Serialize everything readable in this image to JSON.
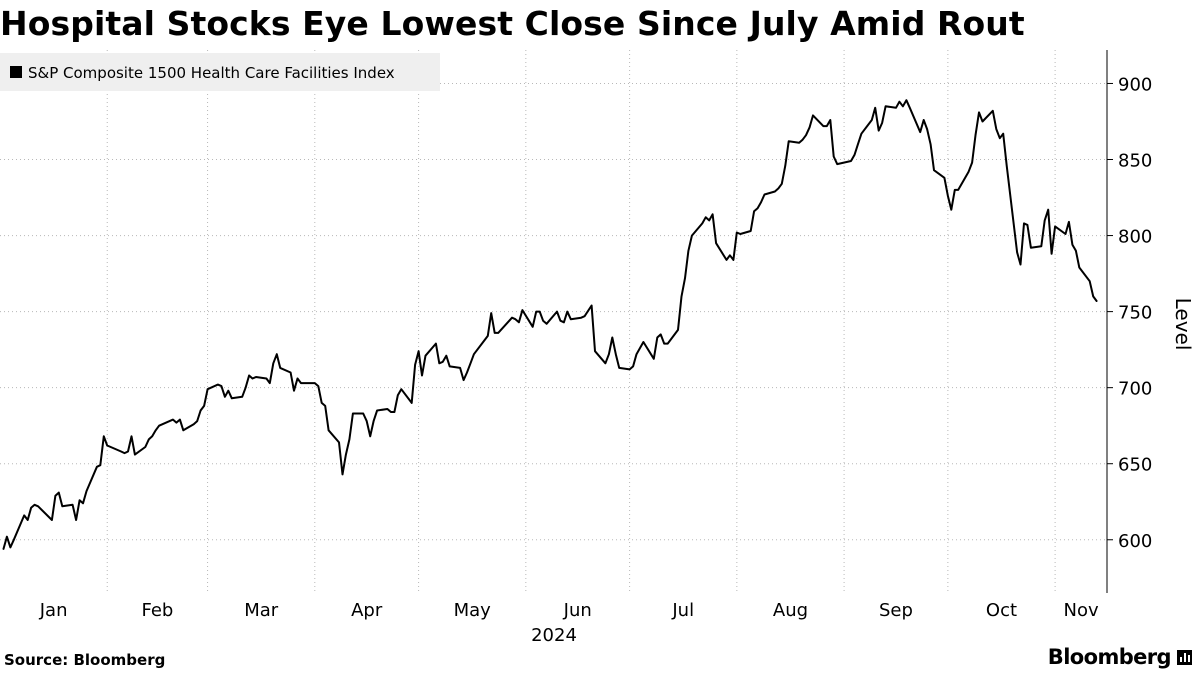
{
  "header": {
    "title": "Hospital Stocks Eye Lowest Close Since July Amid Rout"
  },
  "footer": {
    "source": "Source: Bloomberg",
    "brand": "Bloomberg"
  },
  "icons": {
    "legend_swatch": "square-icon",
    "brand_mark": "bar-chart-icon"
  },
  "colors": {
    "line": "#000000",
    "grid": "#b8b8b8",
    "legend_bg": "#efefef"
  },
  "chart_data": {
    "type": "line",
    "title": "Hospital Stocks Eye Lowest Close Since July Amid Rout",
    "ylabel": "Level",
    "ylim": [
      565,
      922
    ],
    "yticks": [
      600,
      650,
      700,
      750,
      800,
      850,
      900
    ],
    "y_axis_side": "right",
    "x_tick_labels": [
      "Jan",
      "Feb",
      "Mar",
      "Apr",
      "May",
      "Jun",
      "Jul",
      "Aug",
      "Sep",
      "Oct",
      "Nov"
    ],
    "x_year_label": "2024",
    "grid": {
      "horizontal": true,
      "vertical": true,
      "style": "dotted"
    },
    "legend": {
      "placement": "top-left",
      "entries": [
        "S&P Composite 1500 Health Care Facilities Index"
      ]
    },
    "series": [
      {
        "name": "S&P Composite 1500 Health Care Facilities Index",
        "x": [
          "2024-01-02",
          "2024-01-03",
          "2024-01-04",
          "2024-01-05",
          "2024-01-08",
          "2024-01-09",
          "2024-01-10",
          "2024-01-11",
          "2024-01-12",
          "2024-01-16",
          "2024-01-17",
          "2024-01-18",
          "2024-01-19",
          "2024-01-22",
          "2024-01-23",
          "2024-01-24",
          "2024-01-25",
          "2024-01-26",
          "2024-01-29",
          "2024-01-30",
          "2024-01-31",
          "2024-02-01",
          "2024-02-02",
          "2024-02-05",
          "2024-02-06",
          "2024-02-07",
          "2024-02-08",
          "2024-02-09",
          "2024-02-12",
          "2024-02-13",
          "2024-02-14",
          "2024-02-15",
          "2024-02-16",
          "2024-02-20",
          "2024-02-21",
          "2024-02-22",
          "2024-02-23",
          "2024-02-26",
          "2024-02-27",
          "2024-02-28",
          "2024-02-29",
          "2024-03-01",
          "2024-03-04",
          "2024-03-05",
          "2024-03-06",
          "2024-03-07",
          "2024-03-08",
          "2024-03-11",
          "2024-03-12",
          "2024-03-13",
          "2024-03-14",
          "2024-03-15",
          "2024-03-18",
          "2024-03-19",
          "2024-03-20",
          "2024-03-21",
          "2024-03-22",
          "2024-03-25",
          "2024-03-26",
          "2024-03-27",
          "2024-03-28",
          "2024-04-01",
          "2024-04-02",
          "2024-04-03",
          "2024-04-04",
          "2024-04-05",
          "2024-04-08",
          "2024-04-09",
          "2024-04-10",
          "2024-04-11",
          "2024-04-12",
          "2024-04-15",
          "2024-04-16",
          "2024-04-17",
          "2024-04-18",
          "2024-04-19",
          "2024-04-22",
          "2024-04-23",
          "2024-04-24",
          "2024-04-25",
          "2024-04-26",
          "2024-04-29",
          "2024-04-30",
          "2024-05-01",
          "2024-05-02",
          "2024-05-03",
          "2024-05-06",
          "2024-05-07",
          "2024-05-08",
          "2024-05-09",
          "2024-05-10",
          "2024-05-13",
          "2024-05-14",
          "2024-05-15",
          "2024-05-16",
          "2024-05-17",
          "2024-05-20",
          "2024-05-21",
          "2024-05-22",
          "2024-05-23",
          "2024-05-24",
          "2024-05-28",
          "2024-05-29",
          "2024-05-30",
          "2024-05-31",
          "2024-06-03",
          "2024-06-04",
          "2024-06-05",
          "2024-06-06",
          "2024-06-07",
          "2024-06-10",
          "2024-06-11",
          "2024-06-12",
          "2024-06-13",
          "2024-06-14",
          "2024-06-17",
          "2024-06-18",
          "2024-06-20",
          "2024-06-21",
          "2024-06-24",
          "2024-06-25",
          "2024-06-26",
          "2024-06-27",
          "2024-06-28",
          "2024-07-01",
          "2024-07-02",
          "2024-07-03",
          "2024-07-05",
          "2024-07-08",
          "2024-07-09",
          "2024-07-10",
          "2024-07-11",
          "2024-07-12",
          "2024-07-15",
          "2024-07-16",
          "2024-07-17",
          "2024-07-18",
          "2024-07-19",
          "2024-07-22",
          "2024-07-23",
          "2024-07-24",
          "2024-07-25",
          "2024-07-26",
          "2024-07-29",
          "2024-07-30",
          "2024-07-31",
          "2024-08-01",
          "2024-08-02",
          "2024-08-05",
          "2024-08-06",
          "2024-08-07",
          "2024-08-08",
          "2024-08-09",
          "2024-08-12",
          "2024-08-13",
          "2024-08-14",
          "2024-08-15",
          "2024-08-16",
          "2024-08-19",
          "2024-08-20",
          "2024-08-21",
          "2024-08-22",
          "2024-08-23",
          "2024-08-26",
          "2024-08-27",
          "2024-08-28",
          "2024-08-29",
          "2024-08-30",
          "2024-09-03",
          "2024-09-04",
          "2024-09-05",
          "2024-09-06",
          "2024-09-09",
          "2024-09-10",
          "2024-09-11",
          "2024-09-12",
          "2024-09-13",
          "2024-09-16",
          "2024-09-17",
          "2024-09-18",
          "2024-09-19",
          "2024-09-20",
          "2024-09-23",
          "2024-09-24",
          "2024-09-25",
          "2024-09-26",
          "2024-09-27",
          "2024-09-30",
          "2024-10-01",
          "2024-10-02",
          "2024-10-03",
          "2024-10-04",
          "2024-10-07",
          "2024-10-08",
          "2024-10-09",
          "2024-10-10",
          "2024-10-11",
          "2024-10-14",
          "2024-10-15",
          "2024-10-16",
          "2024-10-17",
          "2024-10-18",
          "2024-10-21",
          "2024-10-22",
          "2024-10-23",
          "2024-10-24",
          "2024-10-25",
          "2024-10-28",
          "2024-10-29",
          "2024-10-30",
          "2024-10-31",
          "2024-11-01",
          "2024-11-04",
          "2024-11-05",
          "2024-11-06",
          "2024-11-07",
          "2024-11-08",
          "2024-11-11",
          "2024-11-12",
          "2024-11-13"
        ],
        "values": [
          594,
          602,
          595,
          600,
          616,
          613,
          621,
          623,
          622,
          613,
          629,
          631,
          622,
          623,
          613,
          626,
          624,
          632,
          648,
          649,
          668,
          662,
          661,
          658,
          657,
          658,
          668,
          656,
          661,
          666,
          668,
          672,
          675,
          679,
          677,
          679,
          672,
          676,
          678,
          685,
          688,
          699,
          702,
          701,
          694,
          698,
          693,
          694,
          700,
          708,
          706,
          707,
          706,
          703,
          716,
          722,
          713,
          710,
          698,
          706,
          703,
          703,
          701,
          690,
          688,
          672,
          664,
          643,
          656,
          666,
          683,
          683,
          678,
          668,
          678,
          685,
          686,
          684,
          684,
          695,
          699,
          690,
          715,
          724,
          708,
          721,
          729,
          716,
          717,
          721,
          714,
          713,
          705,
          710,
          716,
          722,
          731,
          734,
          749,
          736,
          736,
          746,
          745,
          743,
          751,
          740,
          750,
          750,
          744,
          742,
          750,
          744,
          743,
          750,
          745,
          746,
          747,
          754,
          724,
          716,
          722,
          733,
          722,
          713,
          712,
          714,
          722,
          730,
          719,
          733,
          735,
          729,
          729,
          738,
          760,
          772,
          790,
          800,
          808,
          812,
          810,
          814,
          795,
          784,
          787,
          784,
          802,
          801,
          803,
          816,
          818,
          822,
          827,
          829,
          831,
          834,
          846,
          862,
          861,
          863,
          866,
          871,
          879,
          872,
          872,
          876,
          852,
          847,
          849,
          853,
          860,
          867,
          876,
          884,
          869,
          874,
          885,
          884,
          888,
          885,
          889,
          884,
          868,
          876,
          870,
          860,
          843,
          838,
          826,
          817,
          830,
          830,
          842,
          848,
          866,
          881,
          875,
          882,
          870,
          864,
          867,
          846,
          789,
          781,
          808,
          807,
          792,
          793,
          810,
          817,
          788,
          806,
          801,
          809,
          794,
          790,
          779,
          770,
          760,
          757
        ]
      }
    ]
  }
}
